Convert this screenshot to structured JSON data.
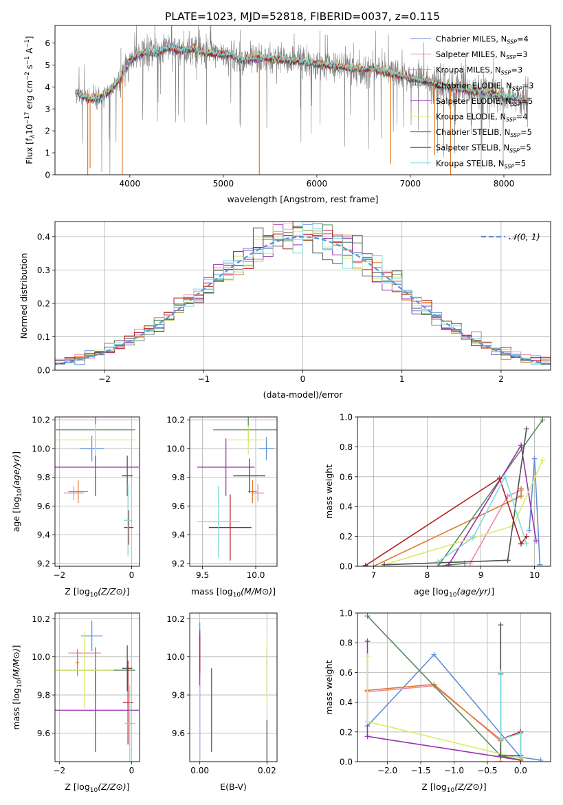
{
  "figure": {
    "title": "PLATE=1023, MJD=52818, FIBERID=0037, z=0.115"
  },
  "colors": {
    "Chabrier MILES": "#5f8fd8",
    "Salpeter MILES": "#e889a6",
    "Kroupa MILES": "#e07a2a",
    "Chabrier ELODIE": "#5a8a5a",
    "Salpeter ELODIE": "#9a2fb0",
    "Kroupa ELODIE": "#d9ec6a",
    "Chabrier STELIB": "#505050",
    "Salpeter STELIB": "#b21e1e",
    "Kroupa STELIB": "#7fdada"
  },
  "chart_data": [
    {
      "id": "spectrum",
      "type": "line",
      "xlabel": "wavelength [Angstrom, rest frame]",
      "ylabel_parts": [
        "Flux [f",
        "λ",
        "10",
        "−17",
        " erg cm",
        "−2",
        " s",
        "−1",
        " A",
        "−1",
        "]"
      ],
      "xlim": [
        3200,
        8500
      ],
      "ylim": [
        0,
        6.8
      ],
      "xticks": [
        4000,
        5000,
        6000,
        7000,
        8000
      ],
      "yticks": [
        0,
        1,
        2,
        3,
        4,
        5,
        6
      ],
      "grid": false,
      "legend_position": "right",
      "legend": [
        {
          "model": "Chabrier MILES",
          "label": "Chabrier MILES, N",
          "sub": "SSP",
          "tail": "=4"
        },
        {
          "model": "Salpeter MILES",
          "label": "Salpeter MILES, N",
          "sub": "SSP",
          "tail": "=3"
        },
        {
          "model": "Kroupa MILES",
          "label": "Kroupa MILES, N",
          "sub": "SSP",
          "tail": "=3"
        },
        {
          "model": "Chabrier ELODIE",
          "label": "Chabrier ELODIE, N",
          "sub": "SSP",
          "tail": "=3"
        },
        {
          "model": "Salpeter ELODIE",
          "label": "Salpeter ELODIE, N",
          "sub": "SSP",
          "tail": "=5"
        },
        {
          "model": "Kroupa ELODIE",
          "label": "Kroupa ELODIE, N",
          "sub": "SSP",
          "tail": "=4"
        },
        {
          "model": "Chabrier STELIB",
          "label": "Chabrier STELIB, N",
          "sub": "SSP",
          "tail": "=5"
        },
        {
          "model": "Salpeter STELIB",
          "label": "Salpeter STELIB, N",
          "sub": "SSP",
          "tail": "=5"
        },
        {
          "model": "Kroupa STELIB",
          "label": "Kroupa STELIB, N",
          "sub": "SSP",
          "tail": "=5"
        }
      ],
      "continuum": [
        [
          3420,
          3.8
        ],
        [
          3500,
          3.55
        ],
        [
          3600,
          3.45
        ],
        [
          3700,
          3.5
        ],
        [
          3800,
          3.9
        ],
        [
          3900,
          4.4
        ],
        [
          4000,
          5.2
        ],
        [
          4100,
          5.5
        ],
        [
          4200,
          5.6
        ],
        [
          4300,
          5.55
        ],
        [
          4400,
          5.75
        ],
        [
          4500,
          5.7
        ],
        [
          4600,
          5.7
        ],
        [
          4700,
          5.75
        ],
        [
          4800,
          5.55
        ],
        [
          4900,
          5.5
        ],
        [
          5000,
          5.5
        ],
        [
          5100,
          5.45
        ],
        [
          5200,
          5.2
        ],
        [
          5300,
          5.3
        ],
        [
          5400,
          5.3
        ],
        [
          5500,
          5.3
        ],
        [
          5600,
          5.25
        ],
        [
          5700,
          5.2
        ],
        [
          5800,
          5.2
        ],
        [
          5900,
          5.1
        ],
        [
          6000,
          5.05
        ],
        [
          6100,
          5.0
        ],
        [
          6200,
          4.95
        ],
        [
          6300,
          4.9
        ],
        [
          6400,
          4.85
        ],
        [
          6500,
          4.8
        ],
        [
          6600,
          4.85
        ],
        [
          6700,
          4.7
        ],
        [
          6800,
          4.6
        ],
        [
          6900,
          4.5
        ],
        [
          7000,
          4.4
        ],
        [
          7100,
          4.3
        ],
        [
          7200,
          4.25
        ],
        [
          7300,
          4.1
        ],
        [
          7400,
          4.0
        ],
        [
          7500,
          3.95
        ],
        [
          7600,
          3.85
        ],
        [
          7700,
          3.8
        ],
        [
          7800,
          3.75
        ],
        [
          7900,
          3.65
        ],
        [
          8000,
          3.55
        ],
        [
          8100,
          3.5
        ],
        [
          8200,
          3.4
        ],
        [
          8260,
          3.35
        ]
      ],
      "absorption_lines": [
        [
          3550,
          0.0
        ],
        [
          3575,
          0.3
        ],
        [
          3920,
          0.0
        ],
        [
          5385,
          0.0
        ],
        [
          6790,
          0.5
        ],
        [
          7260,
          0.9
        ],
        [
          7430,
          0.0
        ]
      ]
    },
    {
      "id": "residuals",
      "type": "histogram",
      "xlabel": "(data-model)/error",
      "ylabel": "Normed distribution",
      "xlim": [
        -2.5,
        2.5
      ],
      "ylim": [
        0,
        0.445
      ],
      "xticks": [
        -2,
        -1,
        0,
        1,
        2
      ],
      "yticks": [
        0.0,
        0.1,
        0.2,
        0.3,
        0.4
      ],
      "grid": true,
      "legend_position": "top-right",
      "legend_label": "𝒩(0, 1)",
      "reference_curve": "normal(0,1)",
      "bin_width": 0.1
    },
    {
      "id": "age-Z",
      "type": "errorbar",
      "xlabel": "Z [log10(Z/Z⊙)]",
      "ylabel": "age [log10(age/yr)]",
      "xlim": [
        -2.12,
        0.22
      ],
      "ylim": [
        9.18,
        10.22
      ],
      "xticks": [
        -2,
        0
      ],
      "yticks": [
        9.2,
        9.4,
        9.6,
        9.8,
        10.0,
        10.2
      ],
      "grid": true,
      "points": [
        {
          "model": "Chabrier MILES",
          "x": -1.1,
          "y": 10.0,
          "xerr": 0.33,
          "yerr": 0.09
        },
        {
          "model": "Salpeter MILES",
          "x": -1.6,
          "y": 9.69,
          "xerr": 0.27,
          "yerr": 0.05
        },
        {
          "model": "Kroupa MILES",
          "x": -1.48,
          "y": 9.7,
          "xerr": 0.27,
          "yerr": 0.08
        },
        {
          "model": "Chabrier ELODIE",
          "x": -1.0,
          "y": 10.13,
          "xerr": 1.1,
          "yerr": 0.12
        },
        {
          "model": "Salpeter ELODIE",
          "x": -1.0,
          "y": 9.87,
          "xerr": 1.2,
          "yerr": 0.2
        },
        {
          "model": "Kroupa ELODIE",
          "x": -1.0,
          "y": 10.06,
          "xerr": 1.1,
          "yerr": 0.11
        },
        {
          "model": "Chabrier STELIB",
          "x": -0.12,
          "y": 9.81,
          "xerr": 0.15,
          "yerr": 0.14
        },
        {
          "model": "Salpeter STELIB",
          "x": -0.08,
          "y": 9.45,
          "xerr": 0.13,
          "yerr": 0.12
        },
        {
          "model": "Kroupa STELIB",
          "x": -0.1,
          "y": 9.5,
          "xerr": 0.12,
          "yerr": 0.25
        }
      ]
    },
    {
      "id": "age-mass",
      "type": "errorbar",
      "xlabel": "mass [log10(M/M⊙)]",
      "xlim": [
        9.38,
        10.2
      ],
      "ylim": [
        9.18,
        10.22
      ],
      "xticks": [
        9.5,
        10.0
      ],
      "yticks": [
        9.2,
        9.4,
        9.6,
        9.8,
        10.0,
        10.2
      ],
      "grid": true,
      "points": [
        {
          "model": "Chabrier MILES",
          "x": 10.1,
          "y": 10.0,
          "xerr": 0.07,
          "yerr": 0.08
        },
        {
          "model": "Salpeter MILES",
          "x": 10.02,
          "y": 9.69,
          "xerr": 0.06,
          "yerr": 0.06
        },
        {
          "model": "Kroupa MILES",
          "x": 9.97,
          "y": 9.7,
          "xerr": 0.04,
          "yerr": 0.08
        },
        {
          "model": "Chabrier ELODIE",
          "x": 9.93,
          "y": 10.13,
          "xerr": 0.33,
          "yerr": 0.09
        },
        {
          "model": "Salpeter ELODIE",
          "x": 9.72,
          "y": 9.87,
          "xerr": 0.27,
          "yerr": 0.2
        },
        {
          "model": "Kroupa ELODIE",
          "x": 9.93,
          "y": 10.06,
          "xerr": 0.19,
          "yerr": 0.1
        },
        {
          "model": "Chabrier STELIB",
          "x": 9.94,
          "y": 9.81,
          "xerr": 0.15,
          "yerr": 0.12
        },
        {
          "model": "Salpeter STELIB",
          "x": 9.76,
          "y": 9.45,
          "xerr": 0.2,
          "yerr": 0.23
        },
        {
          "model": "Kroupa STELIB",
          "x": 9.65,
          "y": 9.49,
          "xerr": 0.2,
          "yerr": 0.25
        }
      ]
    },
    {
      "id": "weight-age",
      "type": "line",
      "xlabel": "age [log10(age/yr)]",
      "ylabel": "mass weight",
      "xlim": [
        6.7,
        10.3
      ],
      "ylim": [
        0,
        1.0
      ],
      "xticks": [
        7,
        8,
        9,
        10
      ],
      "yticks": [
        0.0,
        0.2,
        0.4,
        0.6,
        0.8,
        1.0
      ],
      "grid": true,
      "series": [
        {
          "model": "Chabrier MILES",
          "points": [
            [
              9.9,
              0.24
            ],
            [
              10.0,
              0.72
            ],
            [
              10.1,
              0.01
            ]
          ]
        },
        {
          "model": "Salpeter MILES",
          "points": [
            [
              8.8,
              0.02
            ],
            [
              9.5,
              0.47
            ],
            [
              9.75,
              0.51
            ]
          ]
        },
        {
          "model": "Kroupa MILES",
          "points": [
            [
              7.0,
              0.0
            ],
            [
              9.75,
              0.47
            ],
            [
              9.75,
              0.52
            ]
          ]
        },
        {
          "model": "Chabrier ELODIE",
          "points": [
            [
              8.7,
              0.02
            ],
            [
              8.2,
              0.0
            ],
            [
              10.15,
              0.98
            ]
          ]
        },
        {
          "model": "Salpeter ELODIE",
          "points": [
            [
              8.4,
              0.01
            ],
            [
              9.75,
              0.81
            ],
            [
              10.03,
              0.17
            ]
          ]
        },
        {
          "model": "Kroupa ELODIE",
          "points": [
            [
              7.2,
              0.01
            ],
            [
              9.6,
              0.27
            ],
            [
              10.15,
              0.71
            ]
          ]
        },
        {
          "model": "Chabrier STELIB",
          "points": [
            [
              7.2,
              0.01
            ],
            [
              9.5,
              0.04
            ],
            [
              9.85,
              0.92
            ]
          ]
        },
        {
          "model": "Salpeter STELIB",
          "points": [
            [
              6.85,
              0.005
            ],
            [
              9.35,
              0.59
            ],
            [
              9.75,
              0.15
            ],
            [
              9.85,
              0.2
            ]
          ]
        },
        {
          "model": "Kroupa STELIB",
          "points": [
            [
              8.2,
              0.03
            ],
            [
              8.85,
              0.19
            ],
            [
              9.45,
              0.6
            ],
            [
              9.85,
              0.15
            ]
          ]
        }
      ]
    },
    {
      "id": "mass-Z",
      "type": "errorbar",
      "xlabel": "Z [log10(Z/Z⊙)]",
      "ylabel": "mass [log10(M/M⊙)]",
      "xlim": [
        -2.12,
        0.22
      ],
      "ylim": [
        9.45,
        10.23
      ],
      "xticks": [
        -2,
        0
      ],
      "yticks": [
        9.6,
        9.8,
        10.0,
        10.2
      ],
      "grid": true,
      "points": [
        {
          "model": "Chabrier MILES",
          "x": -1.1,
          "y": 10.11,
          "xerr": 0.3,
          "yerr": 0.08
        },
        {
          "model": "Salpeter MILES",
          "x": -1.3,
          "y": 10.02,
          "xerr": 0.45,
          "yerr": 0.05
        },
        {
          "model": "Kroupa MILES",
          "x": -1.5,
          "y": 9.97,
          "xerr": 0.05,
          "yerr": 0.07
        },
        {
          "model": "Chabrier ELODIE",
          "x": -1.0,
          "y": 9.93,
          "xerr": 1.1,
          "yerr": 0.12
        },
        {
          "model": "Salpeter ELODIE",
          "x": -1.0,
          "y": 9.72,
          "xerr": 1.2,
          "yerr": 0.22
        },
        {
          "model": "Kroupa ELODIE",
          "x": -1.3,
          "y": 9.93,
          "xerr": 0.8,
          "yerr": 0.2
        },
        {
          "model": "Chabrier STELIB",
          "x": -0.12,
          "y": 9.94,
          "xerr": 0.14,
          "yerr": 0.12
        },
        {
          "model": "Salpeter STELIB",
          "x": -0.1,
          "y": 9.76,
          "xerr": 0.14,
          "yerr": 0.22
        },
        {
          "model": "Kroupa STELIB",
          "x": -0.05,
          "y": 9.65,
          "xerr": 0.15,
          "yerr": 0.2
        }
      ]
    },
    {
      "id": "mass-EBV",
      "type": "errorbar",
      "xlabel": "E(B-V)",
      "xlim": [
        -0.003,
        0.023
      ],
      "ylim": [
        9.45,
        10.23
      ],
      "xticks": [
        0.0,
        0.02
      ],
      "xtick_labels": [
        "0.00",
        "0.02"
      ],
      "yticks": [
        9.6,
        9.8,
        10.0,
        10.2
      ],
      "grid": true,
      "points": [
        {
          "model": "Chabrier MILES",
          "x": 0.0,
          "y": 10.1,
          "xerr": 0,
          "yerr": 0.08
        },
        {
          "model": "Salpeter MILES",
          "x": 0.0,
          "y": 10.02,
          "xerr": 0,
          "yerr": 0.05
        },
        {
          "model": "Kroupa MILES",
          "x": 0.0,
          "y": 9.97,
          "xerr": 0,
          "yerr": 0.07
        },
        {
          "model": "Chabrier ELODIE",
          "x": 0.02,
          "y": 9.93,
          "xerr": 0,
          "yerr": 0.12
        },
        {
          "model": "Salpeter ELODIE",
          "x": 0.0,
          "y": 9.8,
          "xerr": 0,
          "yerr": 0.34
        },
        {
          "model": "Kroupa ELODIE",
          "x": 0.02,
          "y": 9.93,
          "xerr": 0,
          "yerr": 0.17
        },
        {
          "model": "Chabrier STELIB",
          "x": 0.02,
          "y": 9.55,
          "xerr": 0,
          "yerr": 0.12
        },
        {
          "model": "Salpeter STELIB",
          "x": 0.0,
          "y": 10.02,
          "xerr": 0,
          "yerr": 0.1
        },
        {
          "model": "Kroupa STELIB",
          "x": 0.0,
          "y": 9.65,
          "xerr": 0,
          "yerr": 0.2
        },
        {
          "model": "Salpeter ELODIE",
          "x": 0.0035,
          "y": 9.72,
          "xerr": 0,
          "yerr": 0.22
        }
      ]
    },
    {
      "id": "weight-Z",
      "type": "line",
      "xlabel": "Z [log10(Z/Z⊙)]",
      "ylabel": "mass weight",
      "xlim": [
        -2.45,
        0.45
      ],
      "ylim": [
        0,
        1.0
      ],
      "xticks": [
        -2.0,
        -1.5,
        -1.0,
        -0.5,
        0.0
      ],
      "xtick_labels": [
        "−2.0",
        "−1.5",
        "−1.0",
        "−0.5",
        "0.0"
      ],
      "yticks": [
        0.0,
        0.2,
        0.4,
        0.6,
        0.8,
        1.0
      ],
      "grid": true,
      "series": [
        {
          "model": "Chabrier MILES",
          "points": [
            [
              -2.3,
              0.24
            ],
            [
              -1.3,
              0.72
            ],
            [
              0.0,
              0.03
            ],
            [
              0.3,
              0.01
            ]
          ]
        },
        {
          "model": "Salpeter MILES",
          "points": [
            [
              -2.3,
              0.47
            ],
            [
              -1.3,
              0.51
            ],
            [
              -0.3,
              0.15
            ],
            [
              -0.3,
              0.0
            ]
          ]
        },
        {
          "model": "Kroupa MILES",
          "points": [
            [
              -2.3,
              0.48
            ],
            [
              -1.3,
              0.52
            ],
            [
              -0.3,
              0.14
            ],
            [
              -0.3,
              0.0
            ]
          ]
        },
        {
          "model": "Chabrier ELODIE",
          "points": [
            [
              -2.3,
              0.98
            ],
            [
              -0.3,
              0.04
            ],
            [
              0.0,
              0.01
            ]
          ]
        },
        {
          "model": "Salpeter ELODIE",
          "points": [
            [
              -2.3,
              0.81
            ],
            [
              -2.3,
              0.17
            ],
            [
              0.0,
              0.01
            ]
          ]
        },
        {
          "model": "Kroupa ELODIE",
          "points": [
            [
              -2.3,
              0.71
            ],
            [
              -2.3,
              0.27
            ],
            [
              0.0,
              0.02
            ]
          ]
        },
        {
          "model": "Chabrier STELIB",
          "points": [
            [
              -0.3,
              0.92
            ],
            [
              -0.3,
              0.04
            ],
            [
              0.0,
              0.04
            ]
          ]
        },
        {
          "model": "Salpeter STELIB",
          "points": [
            [
              -0.3,
              0.59
            ],
            [
              -0.3,
              0.15
            ],
            [
              0.0,
              0.2
            ],
            [
              0.0,
              0.01
            ]
          ]
        },
        {
          "model": "Kroupa STELIB",
          "points": [
            [
              -0.3,
              0.6
            ],
            [
              -0.3,
              0.15
            ],
            [
              0.0,
              0.19
            ],
            [
              0.0,
              0.03
            ]
          ]
        }
      ]
    }
  ]
}
